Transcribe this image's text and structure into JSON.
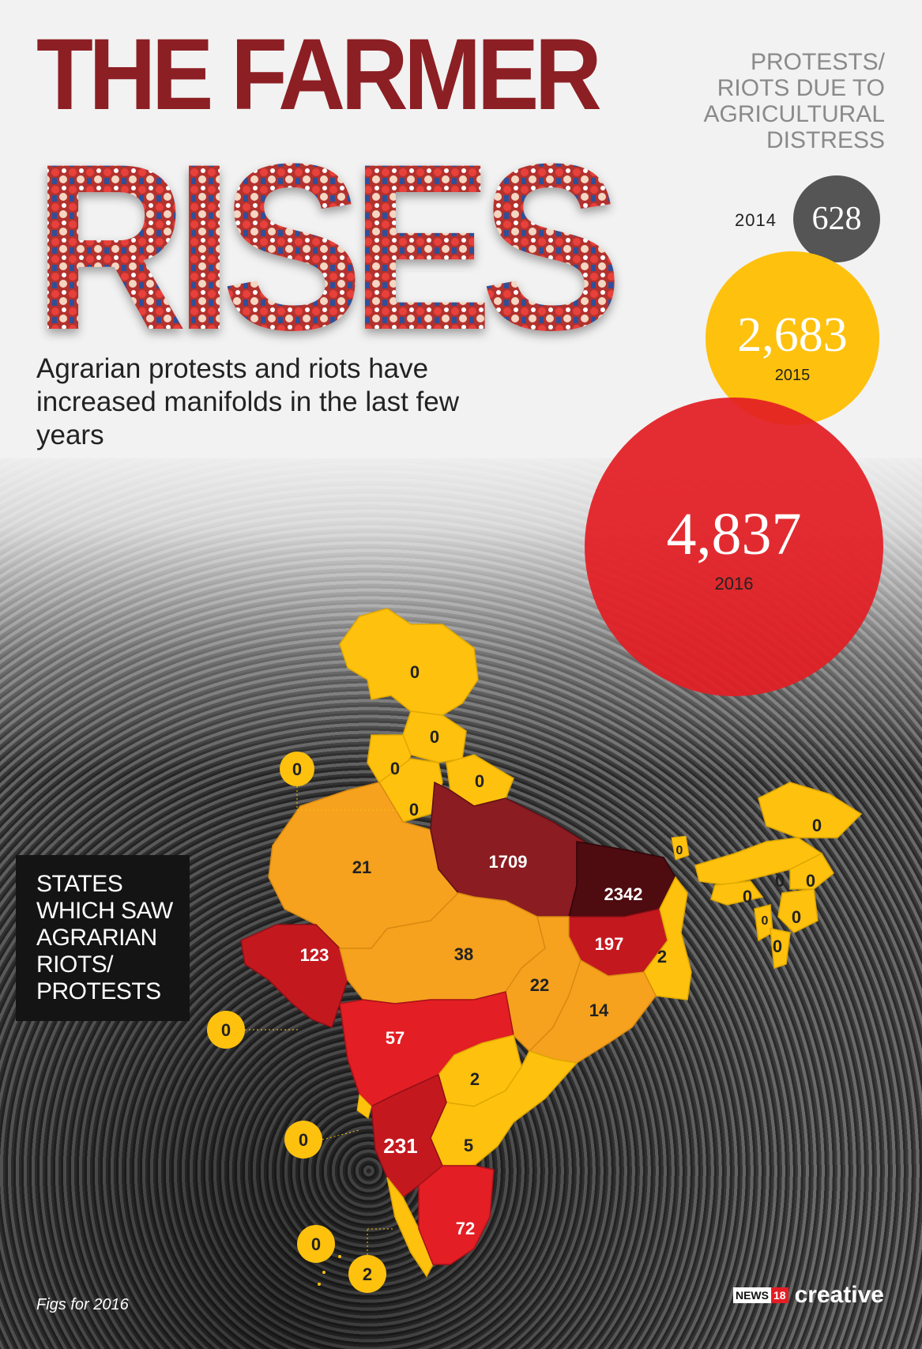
{
  "title": {
    "line1": "THE FARMER",
    "line2": "RISES"
  },
  "subtitle": "Agrarian protests and riots have increased manifolds in the last few years",
  "legend_title": "PROTESTS/ RIOTS DUE TO AGRICULTURAL DISTRESS",
  "yearly": [
    {
      "year": "2014",
      "value": "628",
      "color": "#555556"
    },
    {
      "year": "2015",
      "value": "2,683",
      "color": "#fec10e"
    },
    {
      "year": "2016",
      "value": "4,837",
      "color": "#e31e24"
    }
  ],
  "states_box_label": "STATES WHICH SAW AGRARIAN RIOTS/ PROTESTS",
  "figs_note": "Figs for 2016",
  "brand": {
    "prefix": "NEWS",
    "num": "18",
    "name": "creative"
  },
  "colors": {
    "headline": "#8c1f24",
    "zero_to_low": "#fec10e",
    "low_mid": "#f6a21e",
    "mid_high": "#e31e24",
    "high": "#c4181f",
    "very_high": "#8a1c22",
    "highest": "#4e0b10"
  },
  "map_values": {
    "jammu_kashmir": "0",
    "himachal": "0",
    "punjab": "0",
    "uttarakhand": "0",
    "haryana": "0",
    "delhi": "0",
    "rajasthan": "21",
    "uttar_pradesh": "1709",
    "bihar": "2342",
    "sikkim": "0",
    "arunachal": "0",
    "assam": "0",
    "nagaland": "0",
    "meghalaya": "0",
    "manipur": "0",
    "tripura": "0",
    "mizoram": "0",
    "gujarat": "123",
    "madhya_pradesh": "38",
    "jharkhand": "197",
    "west_bengal": "2",
    "chhattisgarh": "22",
    "odisha": "14",
    "maharashtra": "57",
    "telangana": "2",
    "andhra_pradesh": "5",
    "karnataka": "231",
    "tamil_nadu": "72",
    "kerala": "2",
    "goa": "0",
    "daman_diu": "0",
    "lakshadweep": "0"
  }
}
